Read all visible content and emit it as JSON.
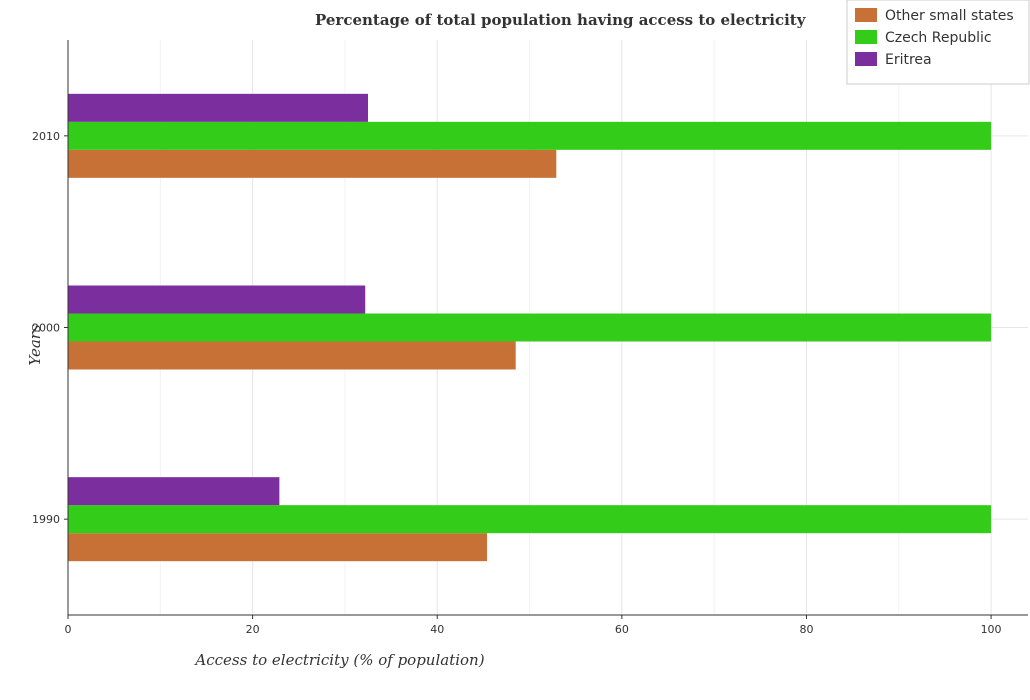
{
  "chart_data": {
    "type": "bar",
    "orientation": "horizontal",
    "title": "Percentage of total population having access to electricity",
    "xlabel": "Access to electricity (% of population)",
    "ylabel": "Years",
    "categories": [
      "1990",
      "2000",
      "2010"
    ],
    "xlim": [
      0,
      104
    ],
    "xticks": [
      0,
      20,
      40,
      60,
      80,
      100
    ],
    "grid": true,
    "legend_position": "top-right",
    "series": [
      {
        "name": "Other small states",
        "color": "#c87137",
        "values": [
          45.4,
          48.5,
          52.9
        ]
      },
      {
        "name": "Czech Republic",
        "color": "#33cc19",
        "values": [
          100,
          100,
          100
        ]
      },
      {
        "name": "Eritrea",
        "color": "#7b2e9e",
        "values": [
          22.9,
          32.2,
          32.5
        ]
      }
    ]
  }
}
